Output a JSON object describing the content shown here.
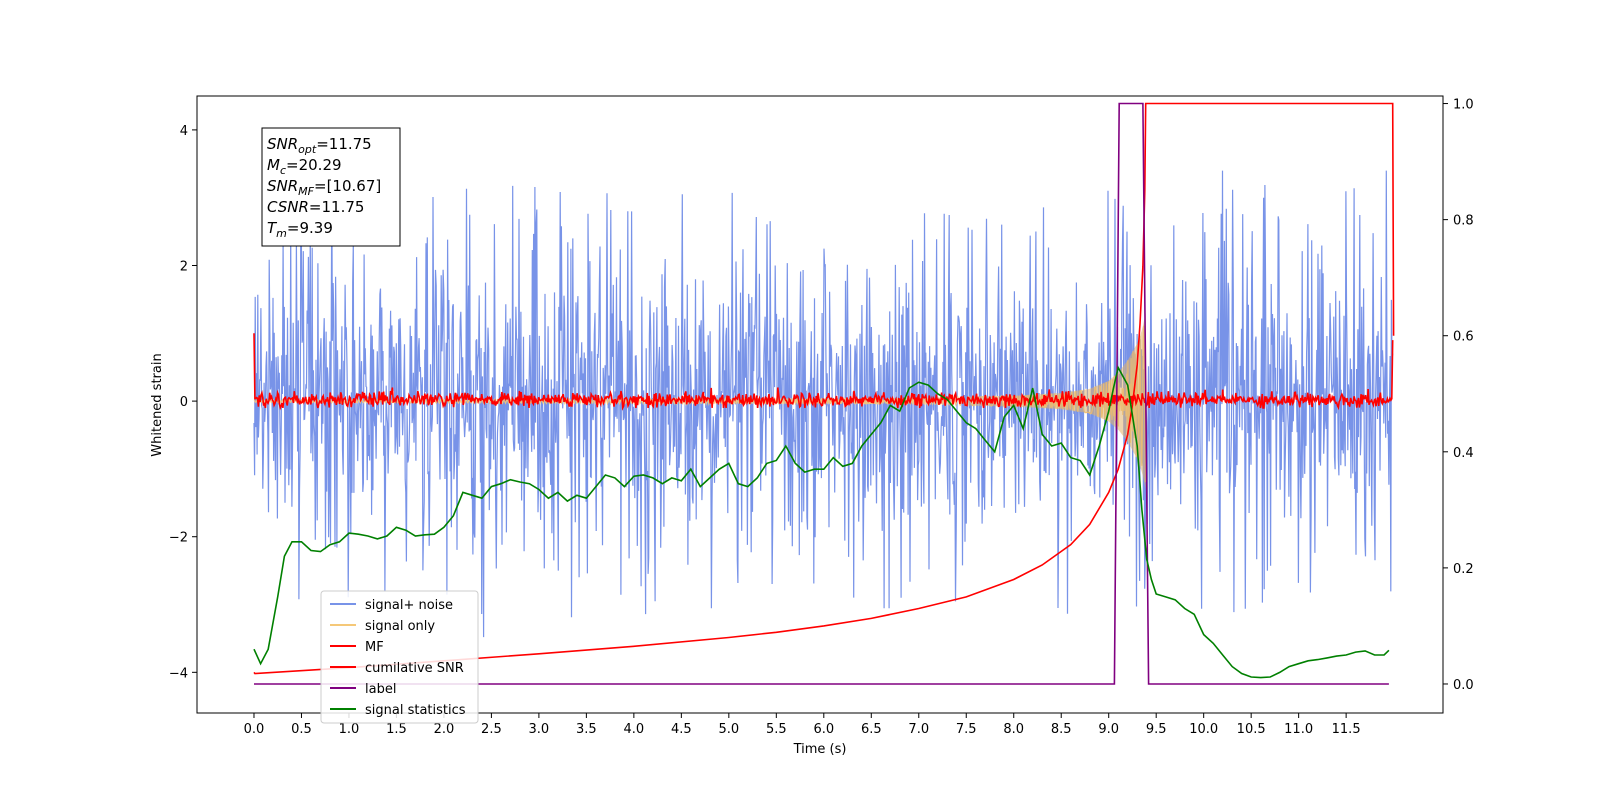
{
  "chart_data": {
    "type": "line",
    "xlabel": "Time (s)",
    "ylabel_left": "Whitened strain",
    "ylabel_right": "",
    "xlim": [
      -0.6,
      12.52
    ],
    "ylim_left": [
      -4.6,
      4.5
    ],
    "ylim_right": [
      -0.05,
      1.013
    ],
    "x_ticks": [
      0.0,
      0.5,
      1.0,
      1.5,
      2.0,
      2.5,
      3.0,
      3.5,
      4.0,
      4.5,
      5.0,
      5.5,
      6.0,
      6.5,
      7.0,
      7.5,
      8.0,
      8.5,
      9.0,
      9.5,
      10.0,
      10.5,
      11.0,
      11.5
    ],
    "y_ticks_left": [
      -4,
      -2,
      0,
      2,
      4
    ],
    "y_ticks_right": [
      0.0,
      0.2,
      0.4,
      0.6,
      0.8,
      1.0
    ],
    "grid": false,
    "legend_position": "lower-left",
    "annotation": {
      "lines": [
        {
          "var": "SNR",
          "sub": "opt",
          "value": "=11.75"
        },
        {
          "var": "M",
          "sub": "c",
          "value": "=20.29"
        },
        {
          "var": "SNR",
          "sub": "MF",
          "value": "=[10.67]"
        },
        {
          "var": "CSNR",
          "sub": "",
          "value": "=11.75"
        },
        {
          "var": "T",
          "sub": "m",
          "value": "=9.39"
        }
      ]
    },
    "series": [
      {
        "name": "signal+ noise",
        "axis": "left",
        "color": "#7893e8",
        "description_values": {
          "x_range": [
            0.0,
            11.99
          ],
          "envelope_upper_typical": 2.0,
          "envelope_lower_typical": -2.0,
          "peak_max": 4.0,
          "peak_min": -3.6
        }
      },
      {
        "name": "signal only",
        "axis": "left",
        "color": "#f5c878",
        "envelope": {
          "x": [
            0.0,
            7.0,
            8.0,
            8.5,
            8.8,
            9.0,
            9.1,
            9.2,
            9.3,
            9.35,
            9.39
          ],
          "amplitude": [
            0.02,
            0.05,
            0.08,
            0.12,
            0.18,
            0.3,
            0.42,
            0.6,
            0.85,
            1.05,
            1.3
          ]
        }
      },
      {
        "name": "MF",
        "axis": "left",
        "color": "#ff0000",
        "description_values": {
          "x_range": [
            0.0,
            11.99
          ],
          "band_upper": 0.15,
          "band_lower": -0.1,
          "start_value": 1.0,
          "end_value": 0.9
        }
      },
      {
        "name": "cumilative SNR",
        "axis": "right",
        "color": "#ff0000",
        "x": [
          0.0,
          0.01,
          1.0,
          2.0,
          3.0,
          4.0,
          5.0,
          5.5,
          6.0,
          6.5,
          7.0,
          7.5,
          8.0,
          8.3,
          8.6,
          8.8,
          9.0,
          9.1,
          9.2,
          9.25,
          9.3,
          9.33,
          9.36,
          9.38,
          9.39,
          9.4,
          11.99,
          12.0
        ],
        "values": [
          0.02,
          0.018,
          0.028,
          0.04,
          0.052,
          0.065,
          0.08,
          0.089,
          0.1,
          0.113,
          0.13,
          0.15,
          0.18,
          0.205,
          0.24,
          0.275,
          0.33,
          0.37,
          0.43,
          0.48,
          0.55,
          0.62,
          0.72,
          0.85,
          1.0,
          1.0,
          1.0,
          0.6
        ]
      },
      {
        "name": "label",
        "axis": "right",
        "color": "#800080",
        "x": [
          0.0,
          9.06,
          9.11,
          9.36,
          9.42,
          11.95
        ],
        "values": [
          0.0,
          0.0,
          1.0,
          1.0,
          0.0,
          0.0
        ]
      },
      {
        "name": "signal statistics",
        "axis": "right",
        "color": "#008000",
        "x": [
          0.0,
          0.07,
          0.15,
          0.25,
          0.32,
          0.4,
          0.5,
          0.6,
          0.7,
          0.8,
          0.9,
          1.0,
          1.1,
          1.2,
          1.3,
          1.4,
          1.5,
          1.6,
          1.7,
          1.8,
          1.9,
          2.0,
          2.1,
          2.2,
          2.3,
          2.4,
          2.5,
          2.6,
          2.7,
          2.8,
          2.9,
          3.0,
          3.1,
          3.2,
          3.3,
          3.4,
          3.5,
          3.6,
          3.7,
          3.8,
          3.9,
          4.0,
          4.1,
          4.2,
          4.3,
          4.4,
          4.5,
          4.6,
          4.7,
          4.8,
          4.9,
          5.0,
          5.1,
          5.2,
          5.3,
          5.4,
          5.5,
          5.6,
          5.7,
          5.8,
          5.9,
          6.0,
          6.1,
          6.2,
          6.3,
          6.4,
          6.5,
          6.6,
          6.7,
          6.8,
          6.9,
          7.0,
          7.1,
          7.2,
          7.3,
          7.4,
          7.5,
          7.6,
          7.7,
          7.8,
          7.9,
          8.0,
          8.1,
          8.2,
          8.3,
          8.4,
          8.5,
          8.6,
          8.7,
          8.8,
          8.9,
          9.0,
          9.05,
          9.1,
          9.2,
          9.3,
          9.35,
          9.4,
          9.45,
          9.5,
          9.6,
          9.7,
          9.8,
          9.9,
          10.0,
          10.1,
          10.2,
          10.3,
          10.4,
          10.5,
          10.6,
          10.7,
          10.8,
          10.9,
          11.0,
          11.1,
          11.2,
          11.3,
          11.4,
          11.5,
          11.6,
          11.7,
          11.8,
          11.9,
          11.95
        ],
        "values": [
          0.06,
          0.035,
          0.06,
          0.15,
          0.22,
          0.245,
          0.245,
          0.23,
          0.228,
          0.24,
          0.245,
          0.26,
          0.258,
          0.255,
          0.25,
          0.255,
          0.27,
          0.265,
          0.255,
          0.257,
          0.258,
          0.27,
          0.29,
          0.33,
          0.325,
          0.32,
          0.34,
          0.345,
          0.352,
          0.348,
          0.345,
          0.335,
          0.32,
          0.33,
          0.315,
          0.325,
          0.32,
          0.34,
          0.36,
          0.355,
          0.34,
          0.358,
          0.36,
          0.355,
          0.345,
          0.355,
          0.35,
          0.37,
          0.34,
          0.355,
          0.37,
          0.38,
          0.345,
          0.34,
          0.355,
          0.38,
          0.385,
          0.41,
          0.38,
          0.365,
          0.37,
          0.37,
          0.39,
          0.375,
          0.38,
          0.41,
          0.43,
          0.45,
          0.48,
          0.47,
          0.51,
          0.52,
          0.515,
          0.5,
          0.49,
          0.47,
          0.45,
          0.44,
          0.42,
          0.4,
          0.46,
          0.48,
          0.44,
          0.51,
          0.43,
          0.41,
          0.415,
          0.39,
          0.385,
          0.36,
          0.41,
          0.47,
          0.51,
          0.545,
          0.515,
          0.41,
          0.3,
          0.215,
          0.18,
          0.155,
          0.15,
          0.145,
          0.13,
          0.12,
          0.085,
          0.07,
          0.05,
          0.03,
          0.018,
          0.012,
          0.011,
          0.012,
          0.02,
          0.03,
          0.035,
          0.04,
          0.042,
          0.045,
          0.048,
          0.05,
          0.055,
          0.057,
          0.05,
          0.05,
          0.058
        ]
      }
    ]
  }
}
